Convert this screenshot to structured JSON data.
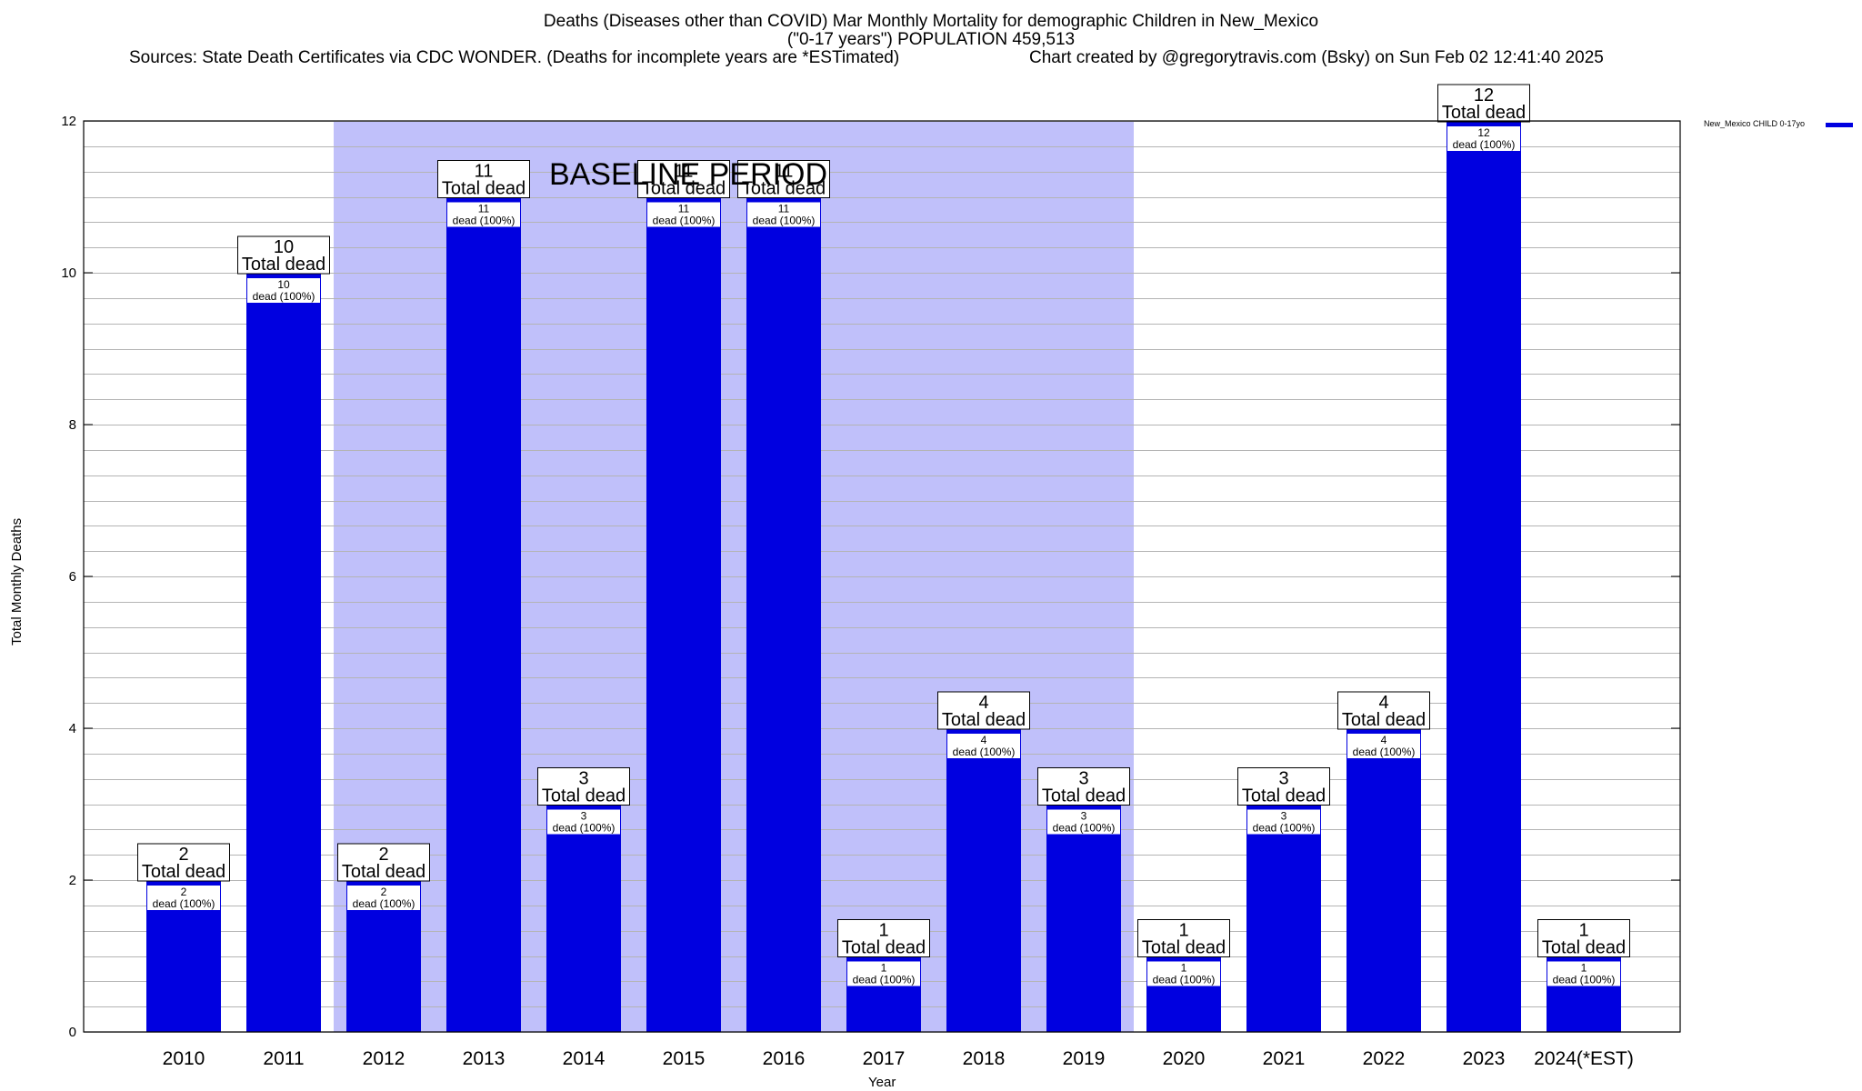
{
  "title": {
    "line1": "Deaths (Diseases other than COVID) Mar Monthly Mortality for demographic Children in New_Mexico",
    "line2": "(\"0-17 years\") POPULATION 459,513",
    "sources": "Sources: State Death Certificates via CDC WONDER. (Deaths for incomplete years are *ESTimated)",
    "credit": "Chart created by @gregorytravis.com (Bsky) on Sun Feb 02 12:41:40 2025"
  },
  "colors": {
    "bar": "#0000e0",
    "baseline_band": "#c0c0fa",
    "gridline": "#b4b4b4"
  },
  "chart_data": {
    "type": "bar",
    "xlabel": "Year",
    "ylabel": "Total Monthly Deaths",
    "ylim": [
      0,
      12
    ],
    "yticks": [
      0,
      2,
      4,
      6,
      8,
      10,
      12
    ],
    "grid": true,
    "legend_position": "top-right",
    "categories": [
      "2010",
      "2011",
      "2012",
      "2013",
      "2014",
      "2015",
      "2016",
      "2017",
      "2018",
      "2019",
      "2020",
      "2021",
      "2022",
      "2023",
      "2024(*EST)"
    ],
    "series": [
      {
        "name": "New_Mexico CHILD 0-17yo",
        "values": [
          2,
          10,
          2,
          11,
          3,
          11,
          11,
          1,
          4,
          3,
          1,
          3,
          4,
          12,
          1
        ]
      }
    ],
    "total_label": "Total dead",
    "inner_label": "dead (100%)",
    "baseline_band": {
      "label": "BASELINE PERIOD",
      "from": "2012",
      "to": "2019"
    }
  }
}
